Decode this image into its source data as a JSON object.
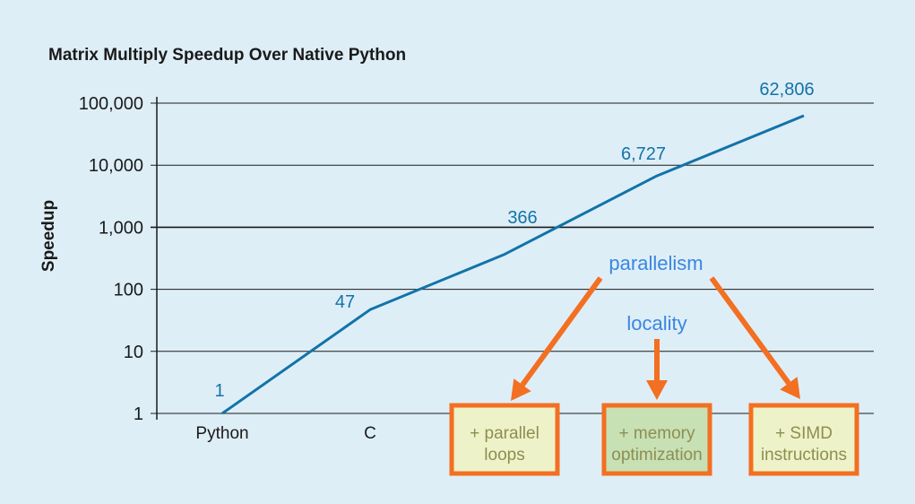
{
  "chart_data": {
    "type": "line",
    "title": "Matrix Multiply Speedup Over Native Python",
    "ylabel": "Speedup",
    "xlabel": "",
    "yscale": "log",
    "ylim": [
      1,
      100000
    ],
    "yticks": [
      {
        "value": 1,
        "label": "1"
      },
      {
        "value": 10,
        "label": "10"
      },
      {
        "value": 100,
        "label": "100"
      },
      {
        "value": 1000,
        "label": "1,000"
      },
      {
        "value": 10000,
        "label": "10,000"
      },
      {
        "value": 100000,
        "label": "100,000"
      }
    ],
    "categories": [
      {
        "label": "Python",
        "boxed": false
      },
      {
        "label": "C",
        "boxed": false
      },
      {
        "label": "+ parallel loops",
        "lines": [
          "+ parallel",
          "loops"
        ],
        "boxed": true,
        "fill": "#eef2c8"
      },
      {
        "label": "+ memory optimization",
        "lines": [
          "+ memory",
          "optimization"
        ],
        "boxed": true,
        "fill": "#c7e0b4"
      },
      {
        "label": "+ SIMD instructions",
        "lines": [
          "+ SIMD",
          "instructions"
        ],
        "boxed": true,
        "fill": "#eef2c8"
      }
    ],
    "values": [
      1,
      47,
      366,
      6727,
      62806
    ],
    "value_labels": [
      "1",
      "47",
      "366",
      "6,727",
      "62,806"
    ],
    "line_color": "#1273a8",
    "box_border_color": "#f36f21",
    "arrow_color": "#f36f21",
    "grid": true,
    "annotations": [
      {
        "text": "parallelism",
        "color": "#3a86e0",
        "targets": [
          "+ parallel loops",
          "+ SIMD instructions"
        ]
      },
      {
        "text": "locality",
        "color": "#3a86e0",
        "targets": [
          "+ memory optimization"
        ]
      }
    ]
  }
}
